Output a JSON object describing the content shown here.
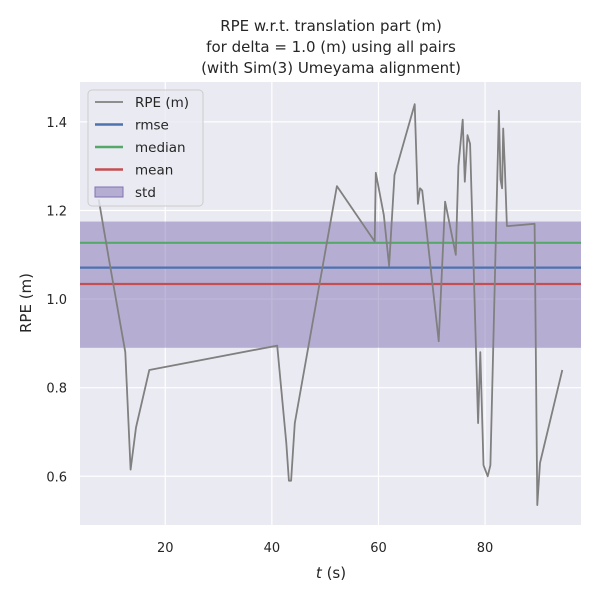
{
  "chart_data": {
    "type": "line",
    "title_lines": [
      "RPE w.r.t. translation part (m)",
      "for delta = 1.0 (m) using all pairs",
      "(with Sim(3) Umeyama alignment)"
    ],
    "xlabel_italic": "t",
    "xlabel_rest": " (s)",
    "ylabel": "RPE (m)",
    "xlim": [
      4,
      98
    ],
    "ylim": [
      0.49,
      1.49
    ],
    "xticks": [
      20,
      40,
      60,
      80
    ],
    "yticks": [
      0.6,
      0.8,
      1.0,
      1.2,
      1.4
    ],
    "ytick_labels": [
      "0.6",
      "0.8",
      "1.0",
      "1.2",
      "1.4"
    ],
    "grid": true,
    "legend_position": "top-left",
    "series": [
      {
        "name": "RPE (m)",
        "color": "#808080",
        "x": [
          7.5,
          9.5,
          12.5,
          13.5,
          14.5,
          17,
          41,
          42.7,
          43.2,
          43.6,
          44.3,
          52.2,
          59.3,
          59.5,
          61,
          62,
          63,
          66.8,
          67.4,
          67.8,
          68.2,
          71.3,
          72.5,
          74.5,
          75,
          75.8,
          76.2,
          76.7,
          77.2,
          78.7,
          79.1,
          79.7,
          80.5,
          81,
          82.6,
          82.9,
          83.2,
          83.4,
          83.7,
          84.1,
          84.5,
          89.3,
          89.8,
          90.3,
          94.5
        ],
        "y": [
          1.225,
          1.085,
          0.88,
          0.615,
          0.71,
          0.84,
          0.895,
          0.675,
          0.59,
          0.59,
          0.72,
          1.255,
          1.13,
          1.285,
          1.19,
          1.075,
          1.28,
          1.44,
          1.215,
          1.25,
          1.245,
          0.905,
          1.22,
          1.1,
          1.3,
          1.405,
          1.265,
          1.37,
          1.35,
          0.72,
          0.88,
          0.625,
          0.6,
          0.625,
          1.425,
          1.27,
          1.25,
          1.385,
          1.3,
          1.165,
          1.165,
          1.17,
          0.535,
          0.63,
          0.84
        ]
      }
    ],
    "rmse": {
      "name": "rmse",
      "value": 1.071,
      "color": "#4c72b0"
    },
    "median": {
      "name": "median",
      "value": 1.127,
      "color": "#55a868"
    },
    "mean": {
      "name": "mean",
      "value": 1.034,
      "color": "#c44e52"
    },
    "std": {
      "name": "std",
      "low": 0.89,
      "high": 1.175,
      "color": "#8172b2"
    },
    "colors": {
      "plot_bg": "#eaeaf2",
      "grid": "#ffffff",
      "text": "#262626"
    }
  }
}
